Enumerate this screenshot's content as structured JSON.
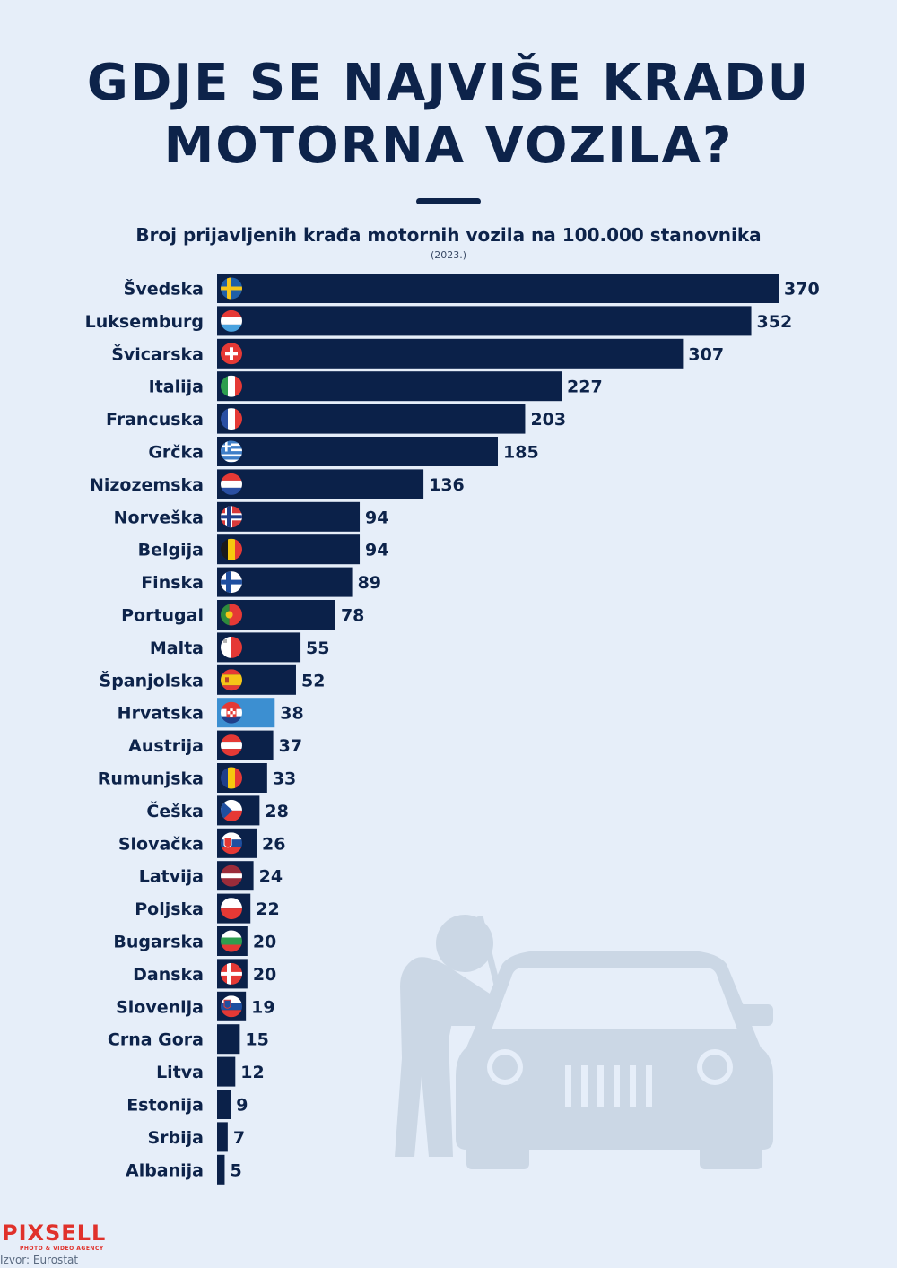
{
  "title_lines": [
    "GDJE SE NAJVIŠE KRADU",
    "MOTORNA VOZILA?"
  ],
  "subtitle": "Broj prijavljenih krađa motornih vozila na 100.000 stanovnika",
  "year_note": "(2023.)",
  "source": "Izvor: Eurostat",
  "logo": {
    "text": "PIXSELL",
    "tagline": "PHOTO & VIDEO AGENCY"
  },
  "colors": {
    "background": "#e6eef9",
    "bar": "#0b2149",
    "highlight_bar": "#3c8fd1",
    "text": "#0d234a",
    "illustration": "#cbd7e5",
    "logo": "#e0312b"
  },
  "illustration": {
    "icon": "car-thief-icon"
  },
  "chart_data": {
    "type": "bar",
    "orientation": "horizontal",
    "xlim": [
      0,
      370
    ],
    "highlight": "Hrvatska",
    "categories": [
      "Švedska",
      "Luksemburg",
      "Švicarska",
      "Italija",
      "Francuska",
      "Grčka",
      "Nizozemska",
      "Norveška",
      "Belgija",
      "Finska",
      "Portugal",
      "Malta",
      "Španjolska",
      "Hrvatska",
      "Austrija",
      "Rumunjska",
      "Češka",
      "Slovačka",
      "Latvija",
      "Poljska",
      "Bugarska",
      "Danska",
      "Slovenija",
      "Crna Gora",
      "Litva",
      "Estonija",
      "Srbija",
      "Albanija"
    ],
    "values": [
      370,
      352,
      307,
      227,
      203,
      185,
      136,
      94,
      94,
      89,
      78,
      55,
      52,
      38,
      37,
      33,
      28,
      26,
      24,
      22,
      20,
      20,
      19,
      15,
      12,
      9,
      7,
      5
    ],
    "flags": [
      "sweden-flag-icon",
      "luxembourg-flag-icon",
      "switzerland-flag-icon",
      "italy-flag-icon",
      "france-flag-icon",
      "greece-flag-icon",
      "netherlands-flag-icon",
      "norway-flag-icon",
      "belgium-flag-icon",
      "finland-flag-icon",
      "portugal-flag-icon",
      "malta-flag-icon",
      "spain-flag-icon",
      "croatia-flag-icon",
      "austria-flag-icon",
      "romania-flag-icon",
      "czechia-flag-icon",
      "slovakia-flag-icon",
      "latvia-flag-icon",
      "poland-flag-icon",
      "bulgaria-flag-icon",
      "denmark-flag-icon",
      "slovenia-flag-icon",
      "",
      "",
      "",
      "",
      ""
    ]
  }
}
